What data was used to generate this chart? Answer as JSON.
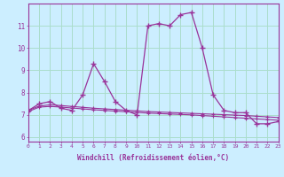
{
  "xlabel": "Windchill (Refroidissement éolien,°C)",
  "background_color": "#cceeff",
  "grid_color": "#aaddcc",
  "line_color": "#993399",
  "x_values": [
    0,
    1,
    2,
    3,
    4,
    5,
    6,
    7,
    8,
    9,
    10,
    11,
    12,
    13,
    14,
    15,
    16,
    17,
    18,
    19,
    20,
    21,
    22,
    23
  ],
  "y_main": [
    7.2,
    7.5,
    7.6,
    7.3,
    7.2,
    7.9,
    9.3,
    8.5,
    7.6,
    7.2,
    7.0,
    11.0,
    11.1,
    11.0,
    11.5,
    11.6,
    10.0,
    7.9,
    7.2,
    7.1,
    7.1,
    6.6,
    6.6,
    6.7
  ],
  "y_trend1": [
    7.2,
    7.4,
    7.45,
    7.42,
    7.38,
    7.34,
    7.3,
    7.27,
    7.24,
    7.21,
    7.18,
    7.15,
    7.13,
    7.11,
    7.09,
    7.07,
    7.05,
    7.03,
    7.01,
    6.99,
    6.97,
    6.94,
    6.91,
    6.88
  ],
  "y_trend2": [
    7.15,
    7.35,
    7.38,
    7.35,
    7.31,
    7.27,
    7.23,
    7.2,
    7.17,
    7.14,
    7.11,
    7.08,
    7.06,
    7.04,
    7.02,
    7.0,
    6.97,
    6.94,
    6.91,
    6.88,
    6.85,
    6.82,
    6.79,
    6.76
  ],
  "ylim": [
    5.8,
    12.0
  ],
  "xlim": [
    0,
    23
  ],
  "yticks": [
    6,
    7,
    8,
    9,
    10,
    11
  ],
  "xticks": [
    0,
    1,
    2,
    3,
    4,
    5,
    6,
    7,
    8,
    9,
    10,
    11,
    12,
    13,
    14,
    15,
    16,
    17,
    18,
    19,
    20,
    21,
    22,
    23
  ]
}
